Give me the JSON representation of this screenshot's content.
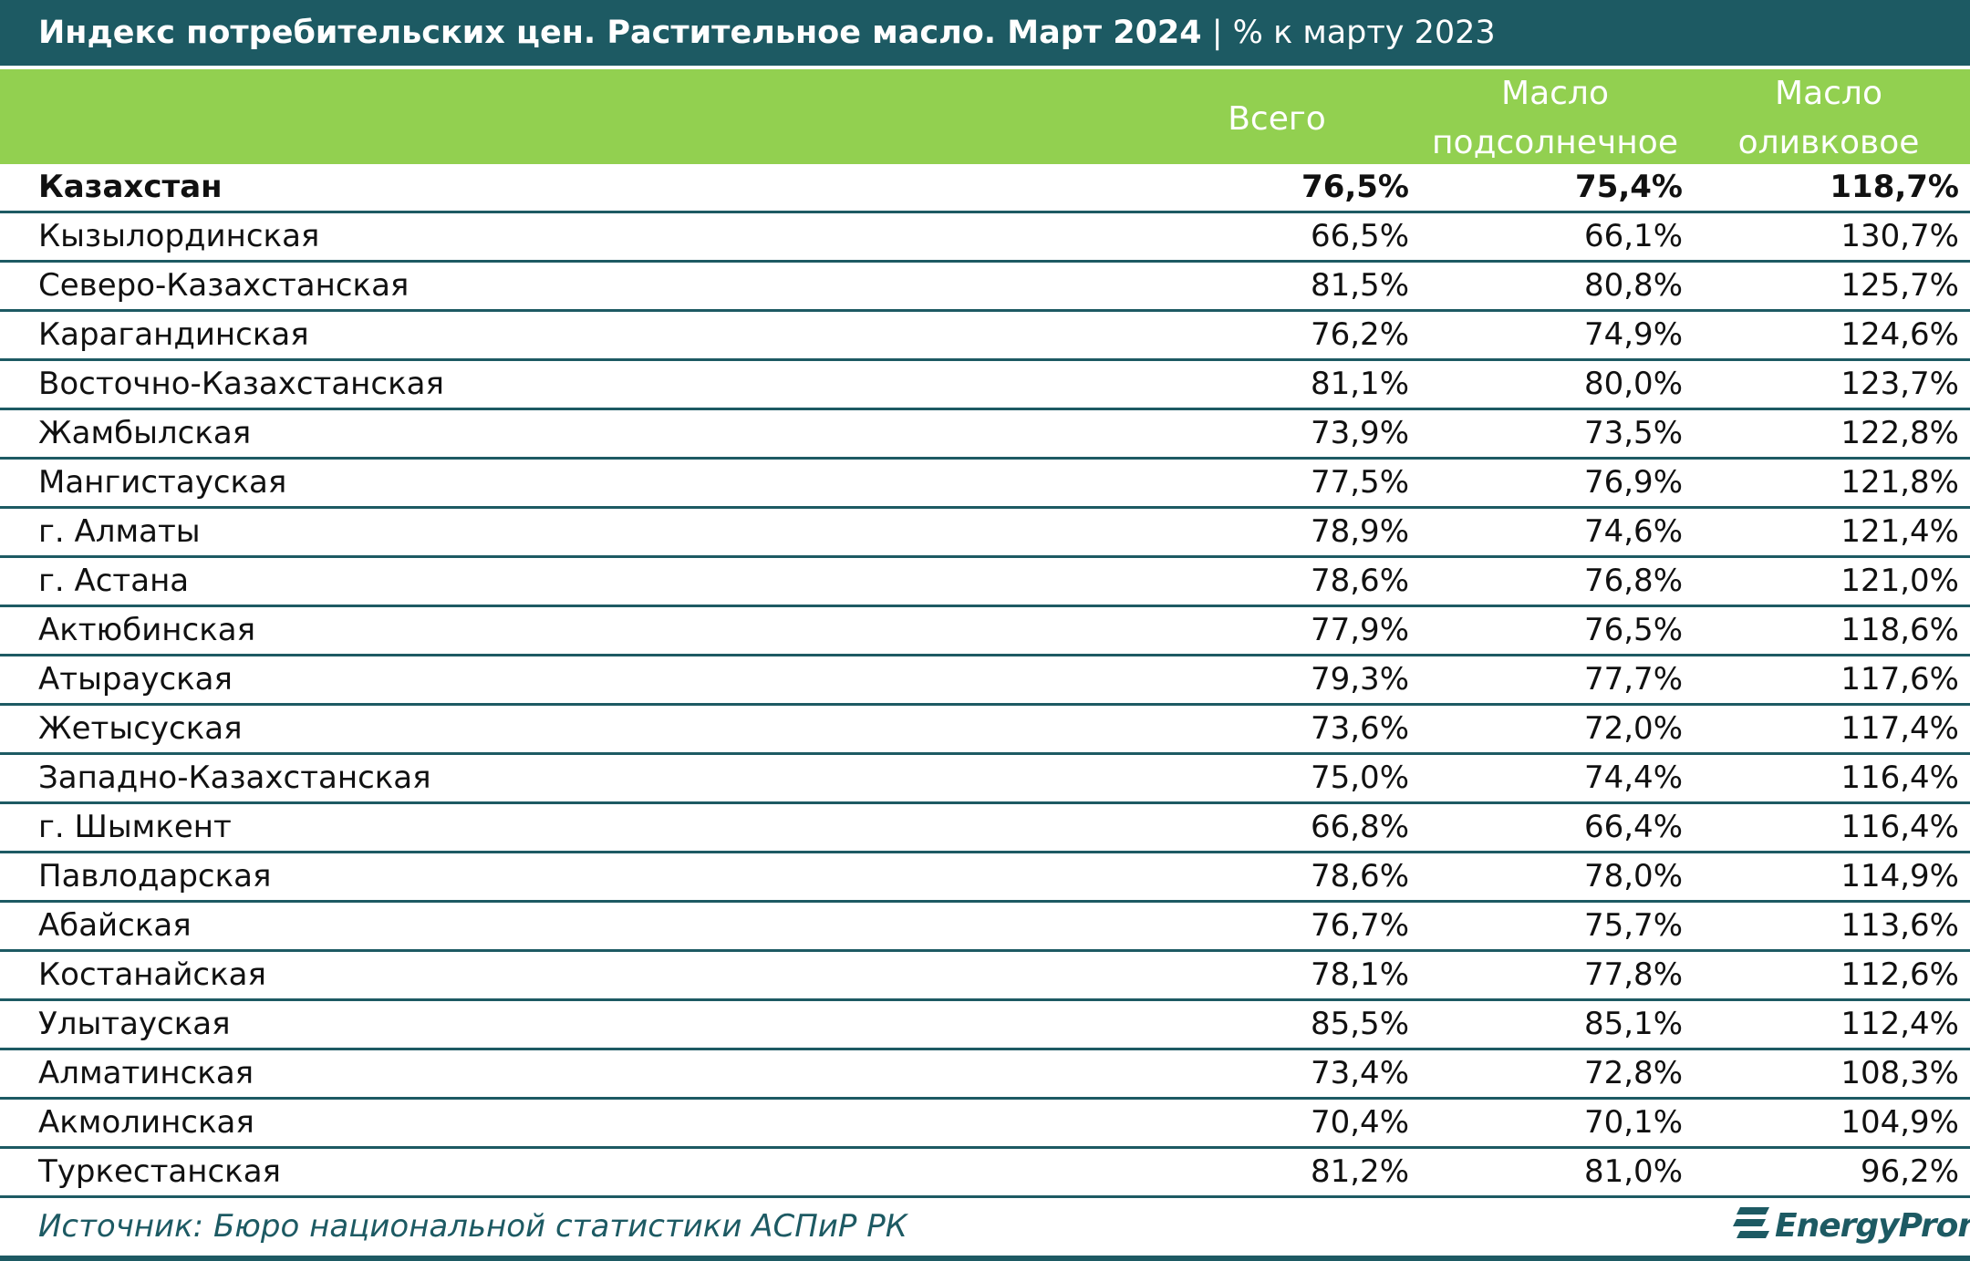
{
  "title": {
    "main": "Индекс потребительских цен. Растительное масло. Март 2024",
    "sub": " | % к марту 2023"
  },
  "chart_data": {
    "type": "table",
    "columns": [
      "",
      "Всего",
      "Масло подсолнечное",
      "Масло оливковое"
    ],
    "header": {
      "total": "Всего",
      "sunflower_line1": "Масло",
      "sunflower_line2": "подсолнечное",
      "olive_line1": "Масло",
      "olive_line2": "оливковое"
    },
    "rows": [
      {
        "name": "Казахстан",
        "total": "76,5%",
        "sunflower": "75,4%",
        "olive": "118,7%",
        "bold": true
      },
      {
        "name": "Кызылординская",
        "total": "66,5%",
        "sunflower": "66,1%",
        "olive": "130,7%"
      },
      {
        "name": "Северо-Казахстанская",
        "total": "81,5%",
        "sunflower": "80,8%",
        "olive": "125,7%"
      },
      {
        "name": "Карагандинская",
        "total": "76,2%",
        "sunflower": "74,9%",
        "olive": "124,6%"
      },
      {
        "name": "Восточно-Казахстанская",
        "total": "81,1%",
        "sunflower": "80,0%",
        "olive": "123,7%"
      },
      {
        "name": "Жамбылская",
        "total": "73,9%",
        "sunflower": "73,5%",
        "olive": "122,8%"
      },
      {
        "name": "Мангистауская",
        "total": "77,5%",
        "sunflower": "76,9%",
        "olive": "121,8%"
      },
      {
        "name": "г. Алматы",
        "total": "78,9%",
        "sunflower": "74,6%",
        "olive": "121,4%"
      },
      {
        "name": "г. Астана",
        "total": "78,6%",
        "sunflower": "76,8%",
        "olive": "121,0%"
      },
      {
        "name": "Актюбинская",
        "total": "77,9%",
        "sunflower": "76,5%",
        "olive": "118,6%"
      },
      {
        "name": "Атырауская",
        "total": "79,3%",
        "sunflower": "77,7%",
        "olive": "117,6%"
      },
      {
        "name": "Жетысуская",
        "total": "73,6%",
        "sunflower": "72,0%",
        "olive": "117,4%"
      },
      {
        "name": "Западно-Казахстанская",
        "total": "75,0%",
        "sunflower": "74,4%",
        "olive": "116,4%"
      },
      {
        "name": "г. Шымкент",
        "total": "66,8%",
        "sunflower": "66,4%",
        "olive": "116,4%"
      },
      {
        "name": "Павлодарская",
        "total": "78,6%",
        "sunflower": "78,0%",
        "olive": "114,9%"
      },
      {
        "name": "Абайская",
        "total": "76,7%",
        "sunflower": "75,7%",
        "olive": "113,6%"
      },
      {
        "name": "Костанайская",
        "total": "78,1%",
        "sunflower": "77,8%",
        "olive": "112,6%"
      },
      {
        "name": "Улытауская",
        "total": "85,5%",
        "sunflower": "85,1%",
        "olive": "112,4%"
      },
      {
        "name": "Алматинская",
        "total": "73,4%",
        "sunflower": "72,8%",
        "olive": "108,3%"
      },
      {
        "name": "Акмолинская",
        "total": "70,4%",
        "sunflower": "70,1%",
        "olive": "104,9%"
      },
      {
        "name": "Туркестанская",
        "total": "81,2%",
        "sunflower": "81,0%",
        "olive": "96,2%"
      }
    ]
  },
  "footer": {
    "source": "Источник: Бюро национальной статистики АСПиР РК",
    "logo": "EnergyProm"
  },
  "colors": {
    "title_bg": "#1d5a63",
    "header_bg": "#92d050",
    "row_border": "#1d5a63",
    "source_text": "#1d5a63"
  }
}
